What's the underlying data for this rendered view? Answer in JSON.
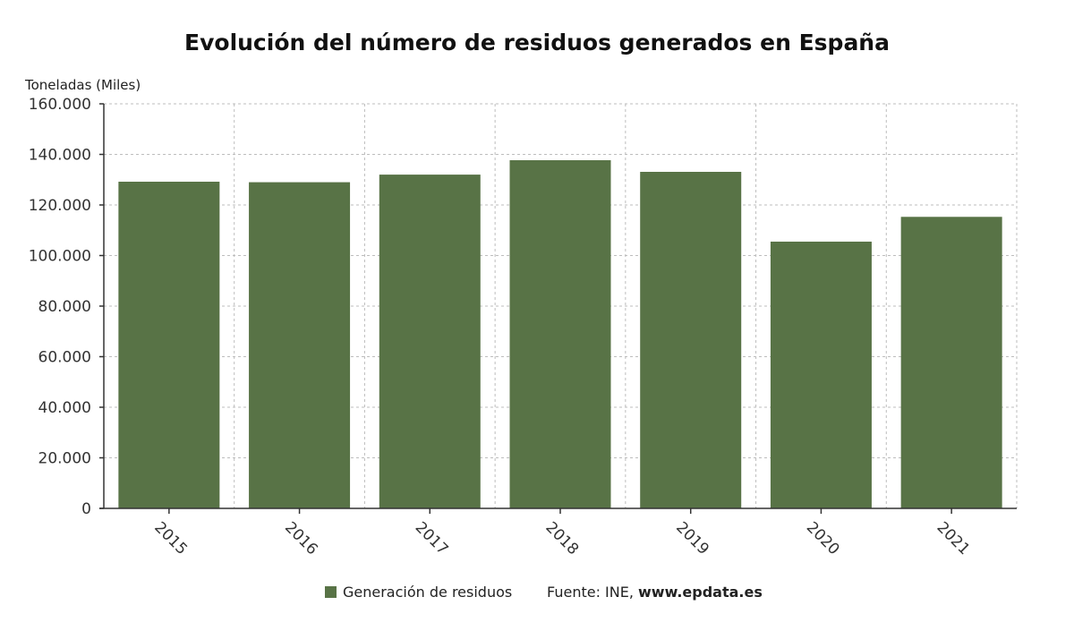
{
  "chart_data": {
    "type": "bar",
    "title": "Evolución del número de residuos generados en España",
    "ylabel": "Toneladas (Miles)",
    "xlabel": "",
    "categories": [
      "2015",
      "2016",
      "2017",
      "2018",
      "2019",
      "2020",
      "2021"
    ],
    "series": [
      {
        "name": "Generación de residuos",
        "values": [
          129200,
          129000,
          132000,
          137700,
          133100,
          105500,
          115300
        ],
        "color": "#587346"
      }
    ],
    "ylim": [
      0,
      160000
    ],
    "yticks": [
      0,
      20000,
      40000,
      60000,
      80000,
      100000,
      120000,
      140000,
      160000
    ],
    "ytick_labels": [
      "0",
      "20.000",
      "40.000",
      "60.000",
      "80.000",
      "100.000",
      "120.000",
      "140.000",
      "160.000"
    ],
    "grid": true,
    "legend_position": "bottom"
  },
  "source": {
    "prefix": "Fuente: INE, ",
    "site": "www.epdata.es"
  }
}
